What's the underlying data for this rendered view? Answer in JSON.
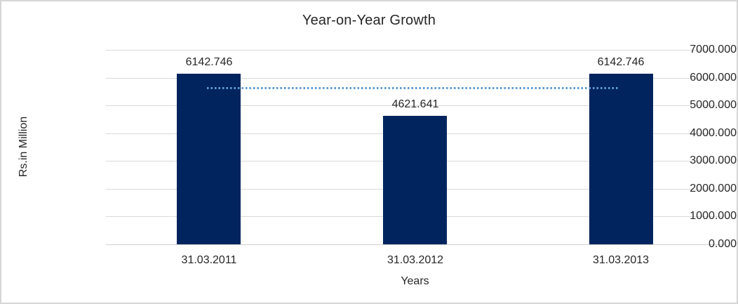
{
  "window": {
    "background": "#ffffff",
    "frame_border_color": "#d6d6d6"
  },
  "chart_data": {
    "type": "bar",
    "title": "Year-on-Year Growth",
    "categories": [
      "31.03.2011",
      "31.03.2012",
      "31.03.2013"
    ],
    "values": [
      6142.746,
      4621.641,
      6142.746
    ],
    "data_labels": [
      "6142.746",
      "4621.641",
      "6142.746"
    ],
    "xlabel": "Years",
    "ylabel": "Rs.in Million",
    "ylim": [
      0,
      7000
    ],
    "y_tick_step": 1000,
    "y_tick_labels": [
      "7000.000",
      "6000.000",
      "5000.000",
      "4000.000",
      "3000.000",
      "2000.000",
      "1000.000",
      "0.000"
    ],
    "grid": true,
    "legend": "none",
    "bar_color": "#02245E",
    "gridline_color": "#D9D9D9",
    "axis_line_color": "#CFCFCF",
    "text_color": "#262626",
    "trendline": {
      "style": "dotted",
      "value": 5635.711,
      "color": "#5B9BD5",
      "from_category": "31.03.2011",
      "to_category": "31.03.2013"
    }
  }
}
